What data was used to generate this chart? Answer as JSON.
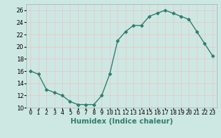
{
  "x": [
    0,
    1,
    2,
    3,
    4,
    5,
    6,
    7,
    8,
    9,
    10,
    11,
    12,
    13,
    14,
    15,
    16,
    17,
    18,
    19,
    20,
    21,
    22,
    23
  ],
  "y": [
    16,
    15.5,
    13,
    12.5,
    12,
    11,
    10.5,
    10.5,
    10.5,
    12,
    15.5,
    21,
    22.5,
    23.5,
    23.5,
    25,
    25.5,
    26,
    25.5,
    25,
    24.5,
    22.5,
    20.5,
    18.5
  ],
  "line_color": "#2e7d6e",
  "marker": "D",
  "marker_size": 2.5,
  "bg_color": "#cde8e2",
  "grid_color": "#e8c8c8",
  "xlabel": "Humidex (Indice chaleur)",
  "xlabel_fontsize": 7.5,
  "xlabel_bold": true,
  "ylim": [
    10,
    27
  ],
  "xlim": [
    -0.5,
    23.5
  ],
  "yticks": [
    10,
    12,
    14,
    16,
    18,
    20,
    22,
    24,
    26
  ],
  "xtick_labels": [
    "0",
    "1",
    "2",
    "3",
    "4",
    "5",
    "6",
    "7",
    "8",
    "9",
    "10",
    "11",
    "12",
    "13",
    "14",
    "15",
    "16",
    "17",
    "18",
    "19",
    "20",
    "21",
    "22",
    "23"
  ],
  "tick_fontsize": 6,
  "line_width": 1.0
}
